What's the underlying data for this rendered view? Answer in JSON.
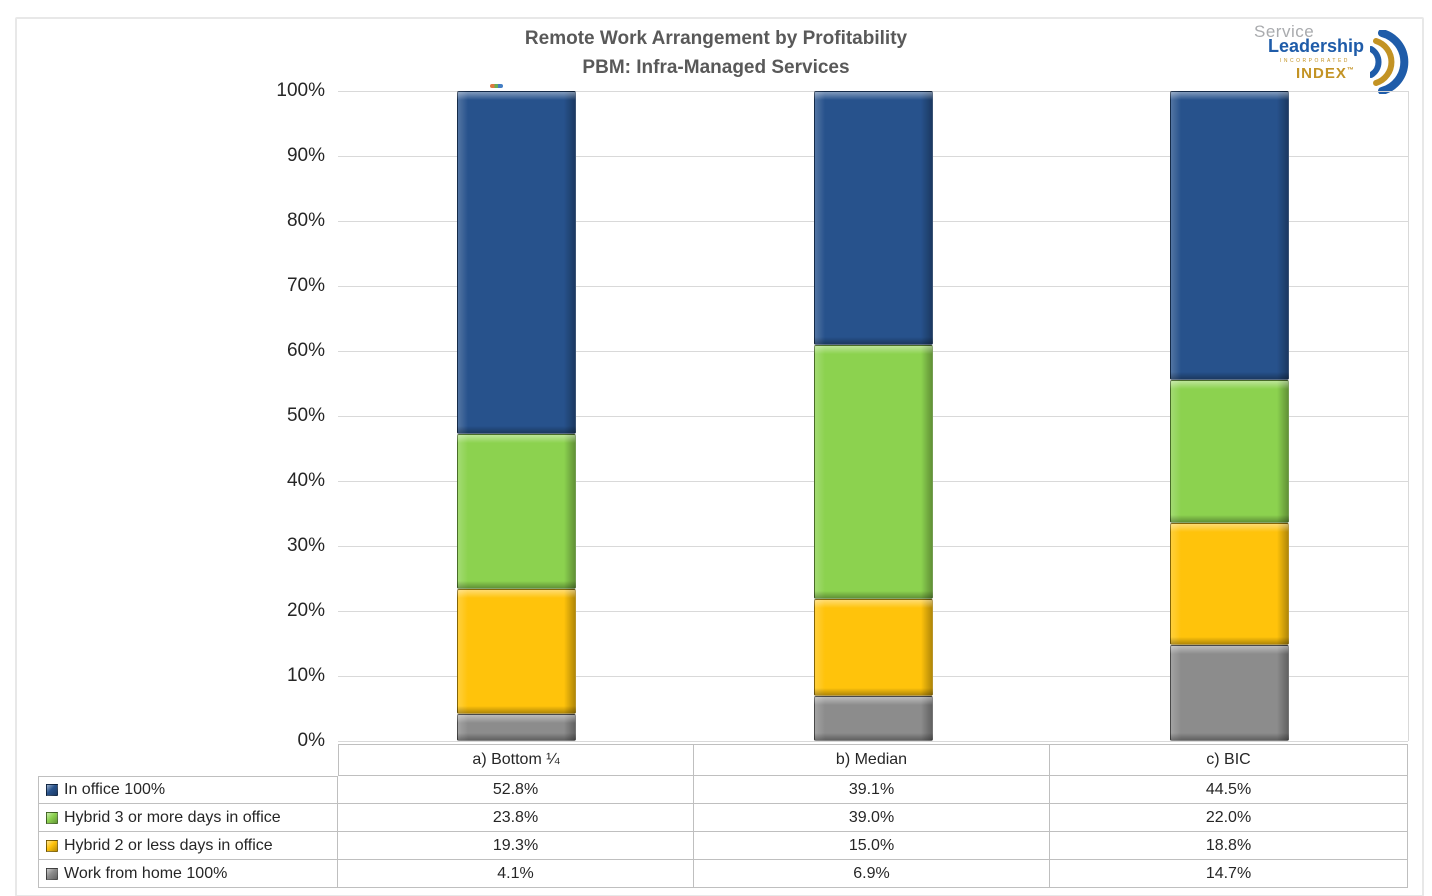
{
  "title": {
    "line1": "Remote Work Arrangement by Profitability",
    "line2": "PBM: Infra-Managed Services"
  },
  "logo": {
    "service": "Service",
    "leadership": "Leadership",
    "incorporated": "INCORPORATED",
    "index": "INDEX",
    "tm": "™",
    "blue": "#1f5ca9",
    "gold": "#c39324"
  },
  "chart_data": {
    "type": "bar",
    "stacked": true,
    "title": "Remote Work Arrangement by Profitability — PBM: Infra-Managed Services",
    "categories": [
      "a) Bottom ¼",
      "b) Median",
      "c) BIC"
    ],
    "series": [
      {
        "name": "In office 100%",
        "color": "#27528C",
        "values": [
          52.8,
          39.1,
          44.5
        ]
      },
      {
        "name": "Hybrid 3 or more days in office",
        "color": "#8CD24F",
        "values": [
          23.8,
          39.0,
          22.0
        ]
      },
      {
        "name": "Hybrid 2 or less days in office",
        "color": "#FFC30B",
        "values": [
          19.3,
          15.0,
          18.8
        ]
      },
      {
        "name": "Work from home 100%",
        "color": "#8C8C8C",
        "values": [
          4.1,
          6.9,
          14.7
        ]
      }
    ],
    "ylim": [
      0,
      100
    ],
    "ytick_step": 10,
    "ytick_labels": [
      "0%",
      "10%",
      "20%",
      "30%",
      "40%",
      "50%",
      "60%",
      "70%",
      "80%",
      "90%",
      "100%"
    ],
    "grid": true,
    "legend_position": "left column of data table below chart",
    "value_format": "percent, one decimal"
  },
  "table": {
    "col_headers": [
      "a) Bottom ¼",
      "b) Median",
      "c) BIC"
    ],
    "rows": [
      {
        "label": "In office 100%",
        "values": [
          "52.8%",
          "39.1%",
          "44.5%"
        ]
      },
      {
        "label": "Hybrid 3 or more days in office",
        "values": [
          "23.8%",
          "39.0%",
          "22.0%"
        ]
      },
      {
        "label": "Hybrid 2 or less days in office",
        "values": [
          "19.3%",
          "15.0%",
          "18.8%"
        ]
      },
      {
        "label": "Work from home 100%",
        "values": [
          "4.1%",
          "6.9%",
          "14.7%"
        ]
      }
    ]
  }
}
